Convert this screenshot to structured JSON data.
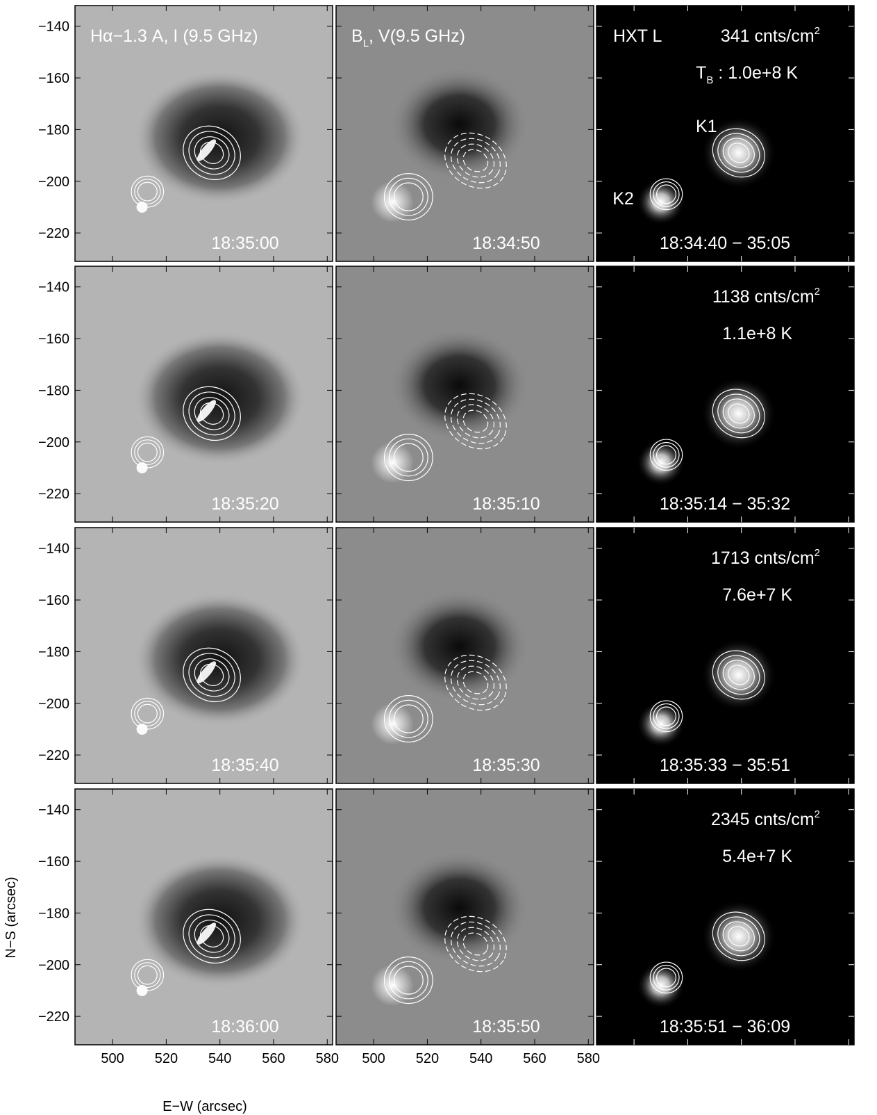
{
  "figure": {
    "xlabel": "E−W (arcsec)",
    "ylabel": "N−S (arcsec)",
    "xlim": [
      486,
      582
    ],
    "ylim": [
      -231,
      -132
    ],
    "xticks": [
      500,
      520,
      540,
      560,
      580
    ],
    "yticks": [
      {
        "value": -140,
        "label": "−140"
      },
      {
        "value": -160,
        "label": "−160"
      },
      {
        "value": -180,
        "label": "−180"
      },
      {
        "value": -200,
        "label": "−200"
      },
      {
        "value": -220,
        "label": "−220"
      }
    ],
    "rows": [
      {
        "cells": [
          {
            "title": "Hα−1.3 A,  I (9.5 GHz)",
            "time": "18:35:00"
          },
          {
            "title": {
              "main": "B",
              "sub": "L",
              "rest": ",  V(9.5 GHz)"
            },
            "time": "18:34:50"
          },
          {
            "instrument": "HXT L",
            "counts": {
              "main": "341 cnts/cm",
              "sup": "2"
            },
            "temperature": {
              "main": "T",
              "sub": "B",
              "rest": " : 1.0e+8 K"
            },
            "sources": [
              "K1",
              "K2"
            ],
            "time": "18:34:40 − 35:05"
          }
        ]
      },
      {
        "cells": [
          {
            "time": "18:35:20"
          },
          {
            "time": "18:35:10"
          },
          {
            "counts": {
              "main": "1138 cnts/cm",
              "sup": "2"
            },
            "temperature": "1.1e+8 K",
            "time": "18:35:14 − 35:32"
          }
        ]
      },
      {
        "cells": [
          {
            "time": "18:35:40"
          },
          {
            "time": "18:35:30"
          },
          {
            "counts": {
              "main": "1713 cnts/cm",
              "sup": "2"
            },
            "temperature": "7.6e+7 K",
            "time": "18:35:33 − 35:51"
          }
        ]
      },
      {
        "cells": [
          {
            "time": "18:36:00"
          },
          {
            "time": "18:35:50"
          },
          {
            "counts": {
              "main": "2345 cnts/cm",
              "sup": "2"
            },
            "temperature": "5.4e+7 K",
            "time": "18:35:51 − 36:09"
          }
        ]
      }
    ]
  }
}
